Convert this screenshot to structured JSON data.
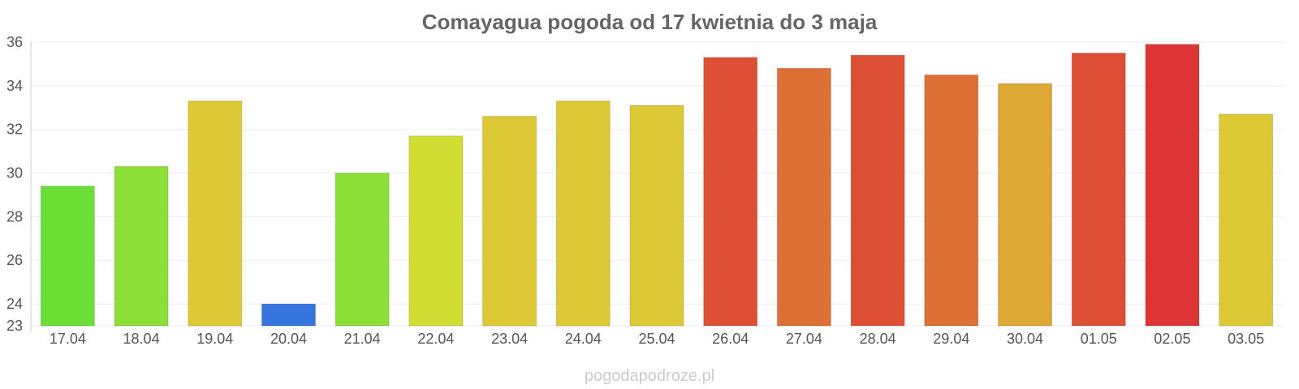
{
  "chart_data": {
    "type": "bar",
    "title": "Comayagua pogoda od 17 kwietnia do 3 maja",
    "xlabel": "",
    "ylabel": "",
    "ylim": [
      23,
      36
    ],
    "yticks": [
      23,
      24,
      26,
      28,
      30,
      32,
      34,
      36
    ],
    "grid": true,
    "categories": [
      "17.04",
      "18.04",
      "19.04",
      "20.04",
      "21.04",
      "22.04",
      "23.04",
      "24.04",
      "25.04",
      "26.04",
      "27.04",
      "28.04",
      "29.04",
      "30.04",
      "01.05",
      "02.05",
      "03.05"
    ],
    "values": [
      29.4,
      30.3,
      33.3,
      24.0,
      30.0,
      31.7,
      32.6,
      33.3,
      33.1,
      35.3,
      34.8,
      35.4,
      34.5,
      34.1,
      35.5,
      35.9,
      32.7
    ],
    "colors": [
      "#6cdf36",
      "#8cdf36",
      "#ddc835",
      "#3575dd",
      "#8cdf36",
      "#d0dd33",
      "#ddc835",
      "#ddc835",
      "#ddc835",
      "#dd5035",
      "#dd7035",
      "#dd5035",
      "#dd7035",
      "#dda835",
      "#dd5035",
      "#dd3535",
      "#ddc835"
    ]
  },
  "watermark": "pogodapodroze.pl"
}
